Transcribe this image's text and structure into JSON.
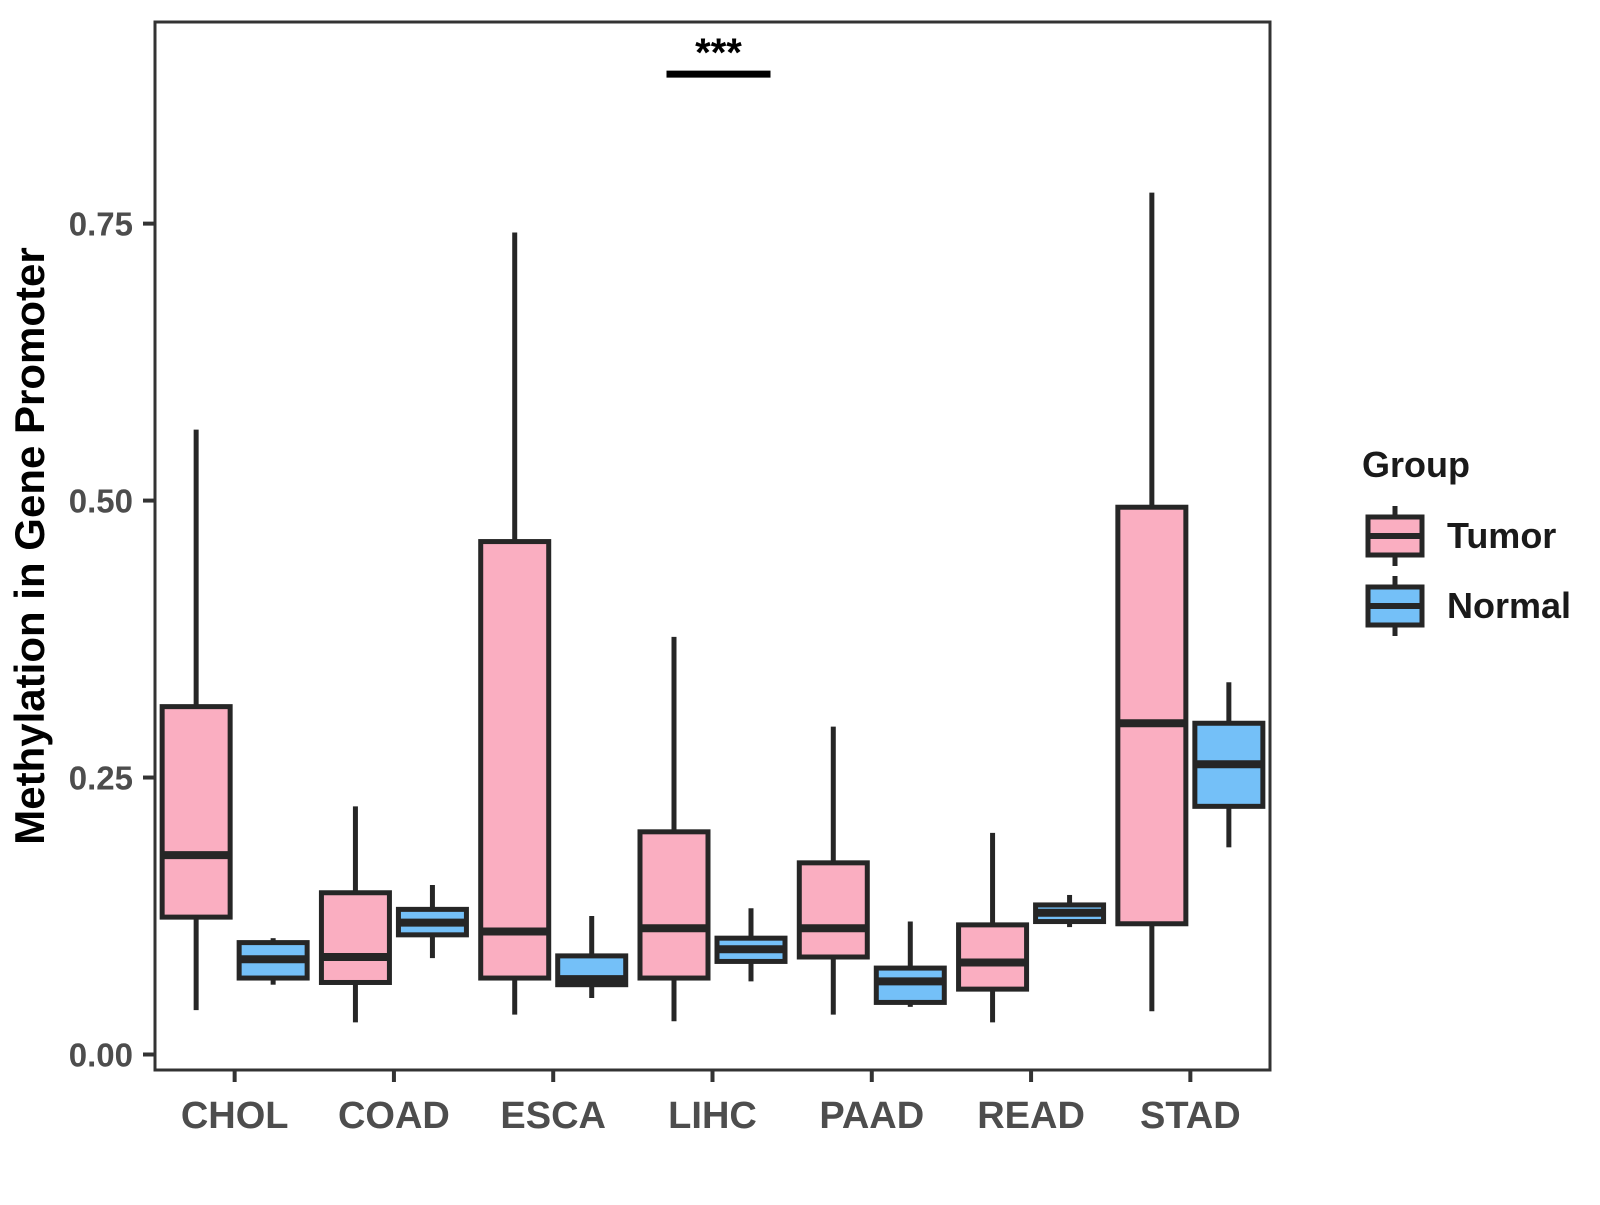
{
  "figure": {
    "background": "#FFFFFF"
  },
  "chart_data": {
    "type": "boxplot",
    "title": "",
    "xlabel": "",
    "ylabel": "Methylation in Gene Promoter",
    "categories": [
      "CHOL",
      "COAD",
      "ESCA",
      "LIHC",
      "PAAD",
      "READ",
      "STAD"
    ],
    "groups": [
      {
        "name": "Tumor",
        "fill": "#FAAEC1"
      },
      {
        "name": "Normal",
        "fill": "#74C0F8"
      }
    ],
    "stats_order": [
      "whisker_low",
      "q1",
      "median",
      "q3",
      "whisker_high"
    ],
    "series": [
      {
        "group": "Tumor",
        "boxes": [
          [
            0.04,
            0.124,
            0.18,
            0.314,
            0.564
          ],
          [
            0.029,
            0.065,
            0.088,
            0.146,
            0.224
          ],
          [
            0.036,
            0.069,
            0.111,
            0.463,
            0.742
          ],
          [
            0.03,
            0.069,
            0.114,
            0.201,
            0.377
          ],
          [
            0.036,
            0.088,
            0.114,
            0.173,
            0.296
          ],
          [
            0.029,
            0.059,
            0.083,
            0.117,
            0.2
          ],
          [
            0.039,
            0.118,
            0.299,
            0.494,
            0.778
          ]
        ]
      },
      {
        "group": "Normal",
        "boxes": [
          [
            0.063,
            0.069,
            0.086,
            0.101,
            0.105
          ],
          [
            0.087,
            0.108,
            0.119,
            0.131,
            0.153
          ],
          [
            0.051,
            0.063,
            0.068,
            0.089,
            0.125
          ],
          [
            0.066,
            0.084,
            0.095,
            0.105,
            0.132
          ],
          [
            0.043,
            0.047,
            0.066,
            0.078,
            0.12
          ],
          [
            0.115,
            0.12,
            0.128,
            0.135,
            0.144
          ],
          [
            0.187,
            0.224,
            0.262,
            0.299,
            0.336
          ]
        ]
      }
    ],
    "yticks": [
      {
        "value": 0.0,
        "label": "0.00"
      },
      {
        "value": 0.25,
        "label": "0.25"
      },
      {
        "value": 0.5,
        "label": "0.50"
      },
      {
        "value": 0.75,
        "label": "0.75"
      }
    ],
    "ylim": [
      -0.014,
      0.932
    ],
    "grid": "off",
    "legend": {
      "title": "Group",
      "position": "right",
      "entries": [
        "Tumor",
        "Normal"
      ]
    },
    "annotation": {
      "text": "***",
      "category": "LIHC",
      "bar_y": 0.885
    },
    "style": {
      "box_stroke": "#262626",
      "panel_border": "#333333",
      "tick_text_color": "#4D4D4D",
      "axis_title_color": "#000000",
      "annotation_color": "#000000"
    }
  }
}
